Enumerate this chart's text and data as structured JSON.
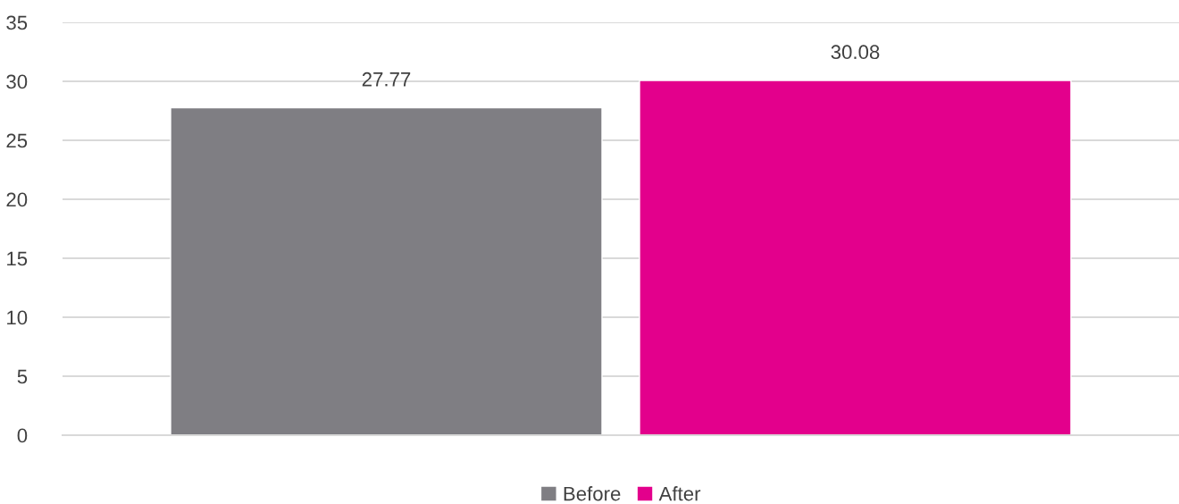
{
  "chart_data": {
    "type": "bar",
    "categories": [
      null
    ],
    "series": [
      {
        "name": "Before",
        "color": "#7f7e83",
        "values": [
          27.77
        ]
      },
      {
        "name": "After",
        "color": "#e3008c",
        "values": [
          30.08
        ]
      }
    ],
    "ylim": [
      0,
      35
    ],
    "yticks": [
      0,
      5,
      10,
      15,
      20,
      25,
      30,
      35
    ],
    "grid": "y",
    "legend": "bottom",
    "data_labels": true
  }
}
